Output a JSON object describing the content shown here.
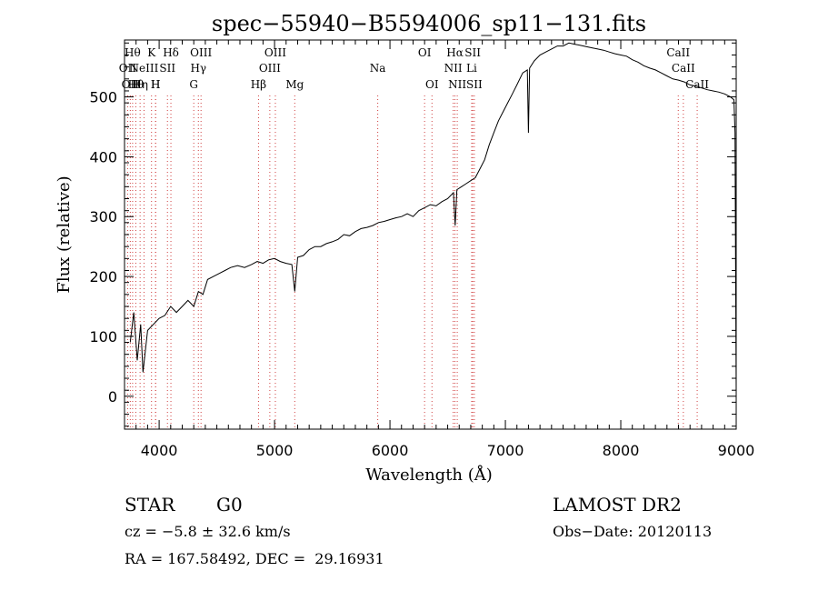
{
  "chart_data": {
    "type": "line",
    "title": "spec−55940−B5594006_sp11−131.fits",
    "xlabel": "Wavelength (Å)",
    "ylabel": "Flux (relative)",
    "xlim": [
      3700,
      9000
    ],
    "ylim": [
      -55,
      595
    ],
    "x_ticks": [
      4000,
      5000,
      6000,
      7000,
      8000,
      9000
    ],
    "y_ticks": [
      0,
      100,
      200,
      300,
      400,
      500
    ],
    "grid": false,
    "legend": "none",
    "series": [
      {
        "x": [
          3750,
          3780,
          3810,
          3840,
          3860,
          3900,
          3950,
          4000,
          4050,
          4100,
          4150,
          4200,
          4250,
          4300,
          4340,
          4380,
          4420,
          4470,
          4520,
          4570,
          4620,
          4680,
          4740,
          4800,
          4850,
          4900,
          4950,
          5000,
          5050,
          5100,
          5150,
          5175,
          5200,
          5250,
          5300,
          5350,
          5400,
          5450,
          5500,
          5550,
          5600,
          5650,
          5700,
          5750,
          5800,
          5850,
          5900,
          5950,
          6000,
          6050,
          6100,
          6150,
          6200,
          6250,
          6300,
          6350,
          6400,
          6450,
          6500,
          6550,
          6565,
          6580,
          6620,
          6660,
          6700,
          6740,
          6780,
          6820,
          6860,
          6900,
          6940,
          6980,
          7020,
          7060,
          7100,
          7150,
          7190,
          7200,
          7210,
          7250,
          7300,
          7350,
          7400,
          7450,
          7500,
          7550,
          7600,
          7650,
          7700,
          7750,
          7800,
          7850,
          7900,
          7950,
          8000,
          8050,
          8100,
          8150,
          8200,
          8250,
          8300,
          8350,
          8400,
          8450,
          8500,
          8550,
          8600,
          8650,
          8700,
          8750,
          8800,
          8850,
          8900,
          8950,
          8980,
          8990,
          8995,
          9000
        ],
        "y": [
          90,
          140,
          60,
          120,
          40,
          110,
          120,
          130,
          135,
          150,
          140,
          150,
          160,
          150,
          175,
          170,
          195,
          200,
          205,
          210,
          215,
          218,
          215,
          220,
          225,
          222,
          228,
          230,
          225,
          222,
          220,
          175,
          232,
          235,
          245,
          250,
          250,
          255,
          258,
          262,
          270,
          268,
          275,
          280,
          282,
          285,
          290,
          292,
          295,
          298,
          300,
          305,
          300,
          310,
          315,
          320,
          318,
          325,
          330,
          340,
          285,
          345,
          350,
          355,
          360,
          365,
          380,
          395,
          420,
          440,
          460,
          475,
          490,
          505,
          520,
          540,
          545,
          440,
          548,
          560,
          570,
          575,
          580,
          585,
          585,
          590,
          588,
          586,
          584,
          582,
          580,
          578,
          575,
          572,
          570,
          568,
          562,
          558,
          552,
          548,
          545,
          540,
          535,
          530,
          528,
          525,
          520,
          518,
          515,
          512,
          510,
          508,
          505,
          500,
          495,
          440,
          200,
          5
        ]
      }
    ],
    "line_markers": [
      {
        "w": 3727,
        "label": "OII",
        "row": 2
      },
      {
        "w": 3750,
        "label": "OII",
        "row": 3
      },
      {
        "w": 3770,
        "label": "Hθ",
        "row": 1
      },
      {
        "w": 3798,
        "label": "Hθ",
        "row": 3
      },
      {
        "w": 3835,
        "label": "Hη",
        "row": 3
      },
      {
        "w": 3869,
        "label": "NeIII",
        "row": 2
      },
      {
        "w": 3934,
        "label": "K",
        "row": 1
      },
      {
        "w": 3969,
        "label": "H",
        "row": 3
      },
      {
        "w": 3970,
        "label": "H",
        "row": 3
      },
      {
        "w": 4072,
        "label": "SII",
        "row": 2
      },
      {
        "w": 4102,
        "label": "Hδ",
        "row": 1
      },
      {
        "w": 4300,
        "label": "G",
        "row": 3
      },
      {
        "w": 4340,
        "label": "Hγ",
        "row": 2
      },
      {
        "w": 4363,
        "label": "OIII",
        "row": 1
      },
      {
        "w": 4861,
        "label": "Hβ",
        "row": 3
      },
      {
        "w": 4959,
        "label": "OIII",
        "row": 2
      },
      {
        "w": 5007,
        "label": "OIII",
        "row": 1
      },
      {
        "w": 5175,
        "label": "Mg",
        "row": 3
      },
      {
        "w": 5894,
        "label": "Na",
        "row": 2
      },
      {
        "w": 6300,
        "label": "OI",
        "row": 1
      },
      {
        "w": 6364,
        "label": "OI",
        "row": 3
      },
      {
        "w": 6548,
        "label": "NII",
        "row": 2
      },
      {
        "w": 6563,
        "label": "Hα",
        "row": 1
      },
      {
        "w": 6583,
        "label": "NII",
        "row": 3
      },
      {
        "w": 6708,
        "label": "Li",
        "row": 2
      },
      {
        "w": 6717,
        "label": "SII",
        "row": 1
      },
      {
        "w": 6731,
        "label": "SII",
        "row": 3
      },
      {
        "w": 8498,
        "label": "CaII",
        "row": 1
      },
      {
        "w": 8542,
        "label": "CaII",
        "row": 2
      },
      {
        "w": 8662,
        "label": "CaII",
        "row": 3
      }
    ]
  },
  "footer": {
    "object_class": "STAR",
    "subclass": "G0",
    "survey": "LAMOST DR2",
    "redshift": "cz = −5.8 ± 32.6 km/s",
    "obs_date": "Obs−Date: 20120113",
    "coords": "RA = 167.58492, DEC =  29.16931"
  }
}
